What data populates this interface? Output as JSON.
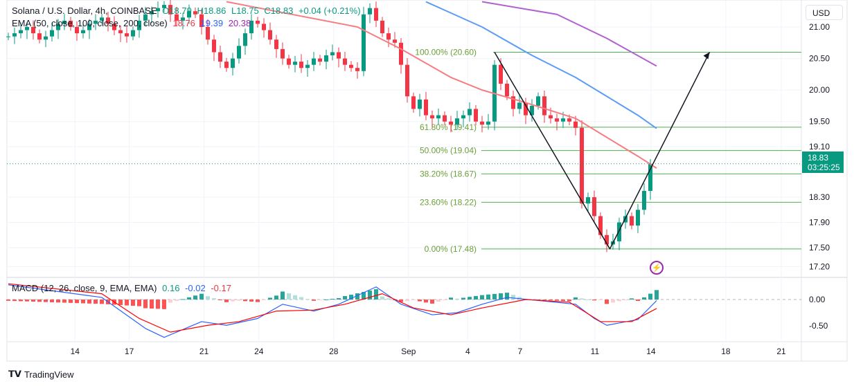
{
  "legend": {
    "symbol": "Solana / U.S. Dollar, 4h, COINBASE",
    "open": "O18.79",
    "high": "H18.86",
    "low": "L18.75",
    "close": "C18.83",
    "change": "+0.04 (+0.21%)",
    "ema_label": "EMA (50, close, 100, close, 200, close)",
    "ema50": "18.76",
    "ema100": "19.39",
    "ema200": "20.38",
    "macd_label": "MACD (12, 26, close, 9, EMA, EMA)",
    "macd_hist": "0.16",
    "macd_line": "-0.02",
    "macd_signal": "-0.17"
  },
  "currency_button": "USD",
  "last_price": "18.83",
  "countdown": "03:25:25",
  "brand": "TradingView",
  "colors": {
    "up": "#089981",
    "down": "#f23645",
    "ema50": "#f77c80",
    "ema100": "#5b9cf6",
    "ema200": "#b060d0",
    "fib": "#4caf50",
    "fib_text": "#6a9f3a",
    "macd": "#2962ff",
    "signal": "#ff0000"
  },
  "chart_data": {
    "type": "candlestick",
    "title": "Solana / U.S. Dollar, 4h, COINBASE",
    "ylim": [
      17.0,
      21.45
    ],
    "price_ticks": [
      "21.00",
      "20.50",
      "20.00",
      "19.50",
      "19.10",
      "18.30",
      "17.90",
      "17.50",
      "17.20"
    ],
    "x_ticks": [
      {
        "label": "14",
        "i": 10.7
      },
      {
        "label": "17",
        "i": 19.4
      },
      {
        "label": "21",
        "i": 31.4
      },
      {
        "label": "24",
        "i": 40.2
      },
      {
        "label": "28",
        "i": 52.2
      },
      {
        "label": "Sep",
        "i": 64.2
      },
      {
        "label": "4",
        "i": 73.7
      },
      {
        "label": "7",
        "i": 82.1
      },
      {
        "label": "11",
        "i": 94.1
      },
      {
        "label": "14",
        "i": 103.1
      },
      {
        "label": "18",
        "i": 115.1
      },
      {
        "label": "21",
        "i": 124
      }
    ],
    "closes": [
      20.85,
      20.9,
      20.95,
      21.0,
      20.9,
      20.8,
      20.85,
      20.95,
      21.05,
      21.1,
      21.0,
      20.9,
      20.95,
      21.05,
      21.1,
      21.15,
      21.05,
      20.95,
      20.9,
      20.85,
      20.95,
      21.1,
      21.2,
      21.25,
      21.3,
      21.35,
      21.2,
      21.1,
      21.15,
      21.25,
      21.2,
      21.0,
      20.8,
      20.6,
      20.45,
      20.35,
      20.5,
      20.7,
      20.9,
      21.1,
      21.05,
      20.95,
      20.8,
      20.65,
      20.5,
      20.4,
      20.45,
      20.35,
      20.4,
      20.5,
      20.45,
      20.55,
      20.6,
      20.5,
      20.4,
      20.35,
      20.3,
      21.2,
      21.3,
      21.1,
      20.9,
      20.8,
      20.75,
      20.4,
      19.9,
      19.7,
      19.85,
      19.6,
      19.55,
      19.6,
      19.5,
      19.45,
      19.55,
      19.6,
      19.7,
      19.5,
      19.45,
      19.5,
      20.4,
      20.1,
      19.9,
      19.7,
      19.8,
      19.6,
      19.75,
      19.9,
      19.6,
      19.55,
      19.5,
      19.55,
      19.5,
      19.4,
      18.2,
      18.3,
      18.0,
      17.7,
      17.55,
      17.6,
      17.9,
      18.0,
      17.85,
      18.1,
      18.4,
      18.83
    ],
    "ema50": [
      [
        35,
        21.4
      ],
      [
        56,
        21.0
      ],
      [
        63,
        20.65
      ],
      [
        71,
        20.2
      ],
      [
        76,
        20.0
      ],
      [
        83,
        19.8
      ],
      [
        91,
        19.55
      ],
      [
        96,
        19.25
      ],
      [
        101,
        18.95
      ],
      [
        104,
        18.76
      ]
    ],
    "ema100": [
      [
        67,
        21.4
      ],
      [
        76,
        21.0
      ],
      [
        84,
        20.55
      ],
      [
        91,
        20.2
      ],
      [
        96,
        19.9
      ],
      [
        101,
        19.6
      ],
      [
        104,
        19.39
      ]
    ],
    "ema200": [
      [
        76,
        21.4
      ],
      [
        88,
        21.2
      ],
      [
        96,
        20.82
      ],
      [
        104,
        20.38
      ]
    ],
    "fib": [
      {
        "label": "100.00% (20.60)",
        "price": 20.6
      },
      {
        "label": "61.80% (19.41)",
        "price": 19.41
      },
      {
        "label": "50.00% (19.04)",
        "price": 19.04
      },
      {
        "label": "38.20% (18.67)",
        "price": 18.67
      },
      {
        "label": "23.60% (18.22)",
        "price": 18.22
      },
      {
        "label": "0.00% (17.48)",
        "price": 17.48
      }
    ],
    "projection": [
      [
        78,
        20.6
      ],
      [
        96.5,
        17.48
      ],
      [
        112.5,
        20.6
      ]
    ],
    "macd_pane": {
      "ticks": [
        "0.00",
        "-0.50"
      ],
      "macd": [
        [
          0,
          0.28
        ],
        [
          15,
          0.04
        ],
        [
          22,
          -0.55
        ],
        [
          25,
          -0.72
        ],
        [
          31,
          -0.42
        ],
        [
          35,
          -0.49
        ],
        [
          40,
          -0.36
        ],
        [
          44,
          -0.09
        ],
        [
          49,
          -0.22
        ],
        [
          53,
          -0.09
        ],
        [
          59,
          0.24
        ],
        [
          63,
          -0.09
        ],
        [
          68,
          -0.29
        ],
        [
          72,
          -0.25
        ],
        [
          76,
          -0.09
        ],
        [
          80,
          0.04
        ],
        [
          86,
          -0.03
        ],
        [
          91,
          -0.09
        ],
        [
          94,
          -0.36
        ],
        [
          96,
          -0.49
        ],
        [
          101,
          -0.38
        ],
        [
          104,
          -0.02
        ]
      ],
      "signal": [
        [
          0,
          0.3
        ],
        [
          15,
          0.11
        ],
        [
          21,
          -0.36
        ],
        [
          26,
          -0.62
        ],
        [
          32,
          -0.49
        ],
        [
          37,
          -0.42
        ],
        [
          43,
          -0.22
        ],
        [
          49,
          -0.2
        ],
        [
          54,
          -0.09
        ],
        [
          60,
          0.11
        ],
        [
          65,
          -0.16
        ],
        [
          71,
          -0.29
        ],
        [
          76,
          -0.16
        ],
        [
          83,
          0.0
        ],
        [
          90,
          -0.05
        ],
        [
          95,
          -0.42
        ],
        [
          100,
          -0.42
        ],
        [
          104,
          -0.17
        ]
      ]
    }
  }
}
